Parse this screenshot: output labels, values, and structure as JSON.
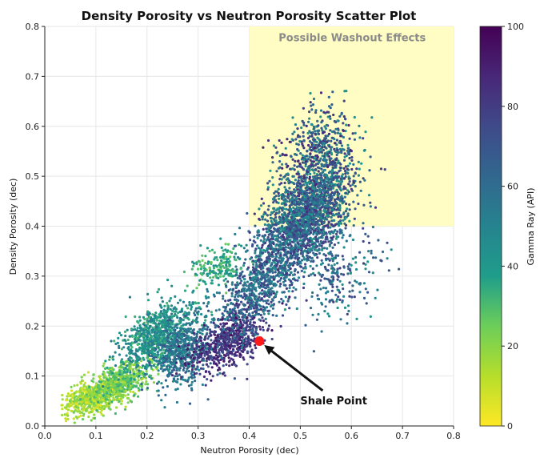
{
  "colors": {
    "region_fill": "#fffdc3",
    "shale_point": "#ff1a1a",
    "arrow": "#111111",
    "grid": "#e6e6e6",
    "viridis": [
      "#440154",
      "#482777",
      "#3f4a8a",
      "#31678e",
      "#26838f",
      "#1f9d8a",
      "#6cce5a",
      "#b6de2b",
      "#fee825"
    ]
  },
  "chart_data": {
    "type": "scatter",
    "title": "Density Porosity vs Neutron Porosity Scatter Plot",
    "xlabel": "Neutron Porosity (dec)",
    "ylabel": "Density Porosity (dec)",
    "xlim": [
      0.0,
      0.8
    ],
    "ylim": [
      0.0,
      0.8
    ],
    "xticks": [
      "0.0",
      "0.1",
      "0.2",
      "0.3",
      "0.4",
      "0.5",
      "0.6",
      "0.7",
      "0.8"
    ],
    "yticks": [
      "0.0",
      "0.1",
      "0.2",
      "0.3",
      "0.4",
      "0.5",
      "0.6",
      "0.7",
      "0.8"
    ],
    "grid": true,
    "colorbar": {
      "label": "Gamma Ray (API)",
      "range": [
        0,
        100
      ],
      "ticks": [
        "0",
        "20",
        "40",
        "60",
        "80",
        "100"
      ],
      "colormap": "viridis"
    },
    "highlight_region": {
      "label": "Possible Washout Effects",
      "x": [
        0.4,
        0.8
      ],
      "y": [
        0.4,
        0.8
      ]
    },
    "shale_point": {
      "x": 0.42,
      "y": 0.17,
      "label": "Shale Point"
    },
    "annotation_text_at": {
      "x": 0.5,
      "y": 0.05
    },
    "clusters": [
      {
        "cx": 0.1,
        "cy": 0.06,
        "sx": 0.035,
        "sy": 0.022,
        "rho": 0.6,
        "gr": [
          5,
          25
        ],
        "n": 700
      },
      {
        "cx": 0.15,
        "cy": 0.09,
        "sx": 0.03,
        "sy": 0.025,
        "rho": 0.5,
        "gr": [
          15,
          35
        ],
        "n": 400
      },
      {
        "cx": 0.22,
        "cy": 0.18,
        "sx": 0.035,
        "sy": 0.035,
        "rho": 0.4,
        "gr": [
          30,
          55
        ],
        "n": 900
      },
      {
        "cx": 0.27,
        "cy": 0.15,
        "sx": 0.03,
        "sy": 0.035,
        "rho": 0.3,
        "gr": [
          45,
          70
        ],
        "n": 500
      },
      {
        "cx": 0.36,
        "cy": 0.17,
        "sx": 0.035,
        "sy": 0.03,
        "rho": 0.5,
        "gr": [
          70,
          95
        ],
        "n": 650
      },
      {
        "cx": 0.34,
        "cy": 0.32,
        "sx": 0.025,
        "sy": 0.02,
        "rho": 0.2,
        "gr": [
          25,
          45
        ],
        "n": 180
      },
      {
        "cx": 0.42,
        "cy": 0.28,
        "sx": 0.04,
        "sy": 0.045,
        "rho": 0.6,
        "gr": [
          45,
          80
        ],
        "n": 650
      },
      {
        "cx": 0.51,
        "cy": 0.42,
        "sx": 0.045,
        "sy": 0.06,
        "rho": 0.5,
        "gr": [
          40,
          85
        ],
        "n": 2200
      },
      {
        "cx": 0.53,
        "cy": 0.56,
        "sx": 0.035,
        "sy": 0.04,
        "rho": 0.3,
        "gr": [
          40,
          90
        ],
        "n": 350
      },
      {
        "cx": 0.58,
        "cy": 0.3,
        "sx": 0.04,
        "sy": 0.05,
        "rho": 0.3,
        "gr": [
          40,
          80
        ],
        "n": 200
      }
    ]
  }
}
